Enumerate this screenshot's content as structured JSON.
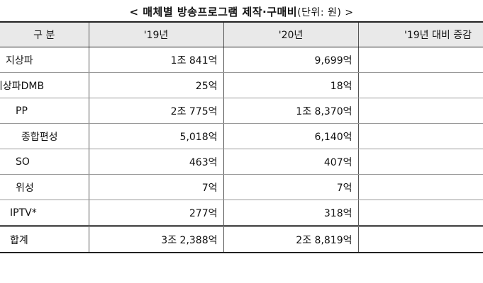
{
  "title": {
    "main": "< 매체별 방송프로그램 제작·구매비",
    "unit": "(단위: 원) >"
  },
  "table": {
    "headers": [
      "구 분",
      "'19년",
      "'20년",
      "'19년 대비 증감"
    ],
    "rows": [
      {
        "label": "지상파",
        "y19": "1조 841억",
        "y20": "9,699억",
        "change": "-"
      },
      {
        "label": "지상파DMB",
        "y19": "25억",
        "y20": "18억",
        "change": "-"
      },
      {
        "label": "PP",
        "y19": "2조 775억",
        "y20": "1조 8,370억",
        "change": "-"
      },
      {
        "label": "종합편성",
        "y19": "5,018억",
        "y20": "6,140억",
        "change": "+"
      },
      {
        "label": "SO",
        "y19": "463억",
        "y20": "407억",
        "change": "-"
      },
      {
        "label": "위성",
        "y19": "7억",
        "y20": "7억",
        "change": ""
      },
      {
        "label": "IPTV*",
        "y19": "277억",
        "y20": "318억",
        "change": "+"
      }
    ],
    "total": {
      "label": "합계",
      "y19": "3조 2,388억",
      "y20": "2조 8,819억",
      "change": "-"
    }
  }
}
